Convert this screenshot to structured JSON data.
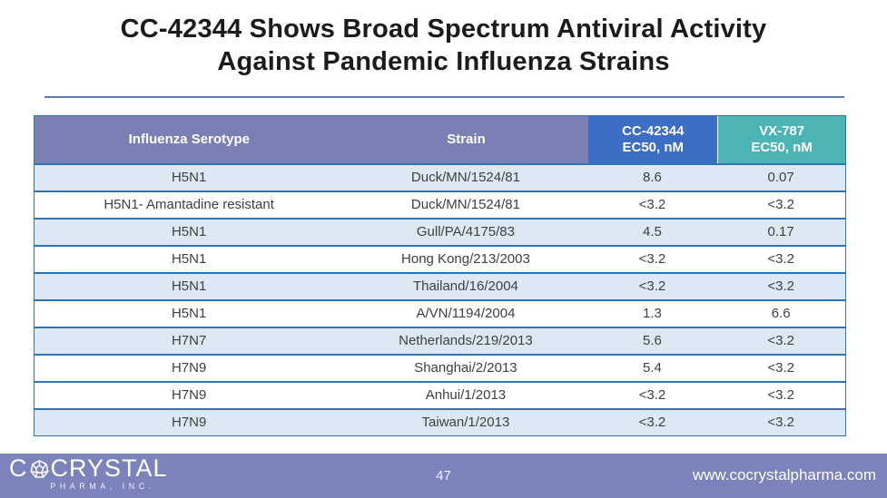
{
  "title": {
    "line1": "CC-42344 Shows Broad Spectrum Antiviral Activity",
    "line2": "Against Pandemic Influenza Strains"
  },
  "table": {
    "headers": [
      {
        "key": "serotype",
        "line1": "Influenza Serotype",
        "line2": "",
        "color": "purple"
      },
      {
        "key": "strain",
        "line1": "Strain",
        "line2": "",
        "color": "purple"
      },
      {
        "key": "cc42344",
        "line1": "CC-42344",
        "line2": "EC50, nM",
        "color": "blue"
      },
      {
        "key": "vx787",
        "line1": "VX-787",
        "line2": "EC50, nM",
        "color": "teal"
      }
    ],
    "rows": [
      {
        "serotype": "H5N1",
        "strain": "Duck/MN/1524/81",
        "cc42344": "8.6",
        "vx787": "0.07",
        "shaded": true
      },
      {
        "serotype": "H5N1- Amantadine resistant",
        "strain": "Duck/MN/1524/81",
        "cc42344": "<3.2",
        "vx787": "<3.2",
        "shaded": false
      },
      {
        "serotype": "H5N1",
        "strain": "Gull/PA/4175/83",
        "cc42344": "4.5",
        "vx787": "0.17",
        "shaded": true
      },
      {
        "serotype": "H5N1",
        "strain": "Hong Kong/213/2003",
        "cc42344": "<3.2",
        "vx787": "<3.2",
        "shaded": false
      },
      {
        "serotype": "H5N1",
        "strain": "Thailand/16/2004",
        "cc42344": "<3.2",
        "vx787": "<3.2",
        "shaded": true
      },
      {
        "serotype": "H5N1",
        "strain": "A/VN/1194/2004",
        "cc42344": "1.3",
        "vx787": "6.6",
        "shaded": false
      },
      {
        "serotype": "H7N7",
        "strain": "Netherlands/219/2013",
        "cc42344": "5.6",
        "vx787": "<3.2",
        "shaded": true
      },
      {
        "serotype": "H7N9",
        "strain": "Shanghai/2/2013",
        "cc42344": "5.4",
        "vx787": "<3.2",
        "shaded": false
      },
      {
        "serotype": "H7N9",
        "strain": "Anhui/1/2013",
        "cc42344": "<3.2",
        "vx787": "<3.2",
        "shaded": false
      },
      {
        "serotype": "H7N9",
        "strain": "Taiwan/1/2013",
        "cc42344": "<3.2",
        "vx787": "<3.2",
        "shaded": true
      }
    ]
  },
  "footer": {
    "logo": {
      "prefix": "C",
      "suffix": "CRYSTAL",
      "gem_icon": "gem-icon",
      "subtext": "PHARMA, INC."
    },
    "page_number": "47",
    "website": "www.cocrystalpharma.com"
  },
  "colors": {
    "title_text": "#1b1b1b",
    "divider": "#6676ae",
    "header_purple": "#7a80b4",
    "header_blue": "#3b6ec4",
    "header_teal": "#4cb4b4",
    "row_shaded": "#dce9f4",
    "row_white": "#ffffff",
    "border_blue": "#2e75b6",
    "body_text": "#3f3f3f",
    "footer_purple": "#7c82bc"
  }
}
